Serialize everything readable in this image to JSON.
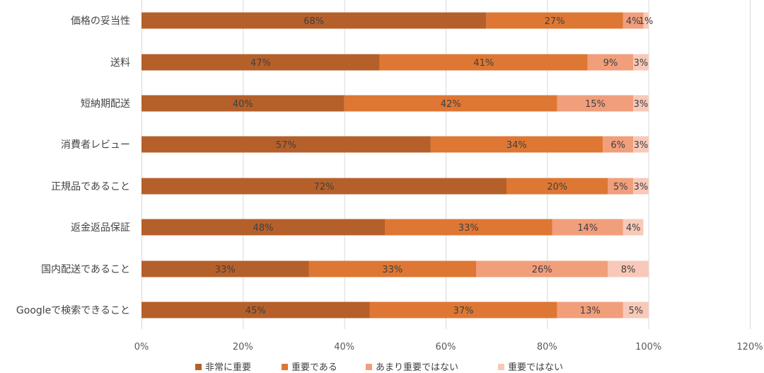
{
  "chart_data": {
    "type": "bar",
    "orientation": "horizontal",
    "stacked": true,
    "categories": [
      "価格の妥当性",
      "送料",
      "短納期配送",
      "消費者レビュー",
      "正規品であること",
      "返金返品保証",
      "国内配送であること",
      "Googleで検索できること"
    ],
    "series": [
      {
        "name": "非常に重要",
        "color": "#b5602a",
        "values": [
          68,
          47,
          40,
          57,
          72,
          48,
          33,
          45
        ]
      },
      {
        "name": "重要である",
        "color": "#de7733",
        "values": [
          27,
          41,
          42,
          34,
          20,
          33,
          33,
          37
        ]
      },
      {
        "name": "あまり重要ではない",
        "color": "#f19e7b",
        "values": [
          4,
          9,
          15,
          6,
          5,
          14,
          26,
          13
        ]
      },
      {
        "name": "重要ではない",
        "color": "#f8c9b8",
        "values": [
          1,
          3,
          3,
          3,
          3,
          4,
          8,
          5
        ]
      }
    ],
    "data_labels": [
      [
        "68%",
        "47%",
        "40%",
        "57%",
        "72%",
        "48%",
        "33%",
        "45%"
      ],
      [
        "27%",
        "41%",
        "42%",
        "34%",
        "20%",
        "33%",
        "33%",
        "37%"
      ],
      [
        "4%",
        "9%",
        "15%",
        "6%",
        "5%",
        "14%",
        "26%",
        "13%"
      ],
      [
        "1%",
        "3%",
        "3%",
        "3%",
        "3%",
        "4%",
        "8%",
        "5%"
      ]
    ],
    "xlim": [
      0,
      120
    ],
    "x_ticks": [
      0,
      20,
      40,
      60,
      80,
      100,
      120
    ],
    "x_tick_labels": [
      "0%",
      "20%",
      "40%",
      "60%",
      "80%",
      "100%",
      "120%"
    ],
    "grid": true,
    "legend_position": "bottom"
  }
}
